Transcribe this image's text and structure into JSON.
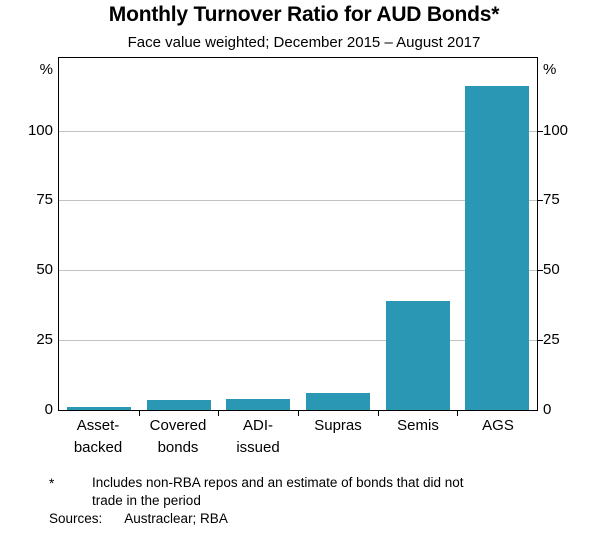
{
  "chart_data": {
    "type": "bar",
    "title": "Monthly Turnover Ratio for AUD Bonds*",
    "subtitle": "Face value weighted; December 2015 – August 2017",
    "unit": "%",
    "categories": [
      "Asset-backed",
      "Covered bonds",
      "ADI-issued",
      "Supras",
      "Semis",
      "AGS"
    ],
    "category_label_lines": [
      [
        "Asset-",
        "backed"
      ],
      [
        "Covered",
        "bonds"
      ],
      [
        "ADI-",
        "issued"
      ],
      [
        "Supras"
      ],
      [
        "Semis"
      ],
      [
        "AGS"
      ]
    ],
    "values": [
      1,
      3.5,
      4,
      6,
      39,
      116
    ],
    "yticks": [
      0,
      25,
      50,
      75,
      100
    ],
    "ylim": [
      0,
      126
    ],
    "grid": true,
    "legend_position": "none",
    "bar_color": "#2A97B4",
    "gridline_color": "#C2C2C2",
    "axis_color": "#000000",
    "footnote": {
      "marker": "*",
      "lines": [
        "Includes non-RBA repos and an estimate of bonds that did not",
        "trade in the period"
      ]
    },
    "sources": {
      "label": "Sources:",
      "value": "Austraclear; RBA"
    }
  }
}
